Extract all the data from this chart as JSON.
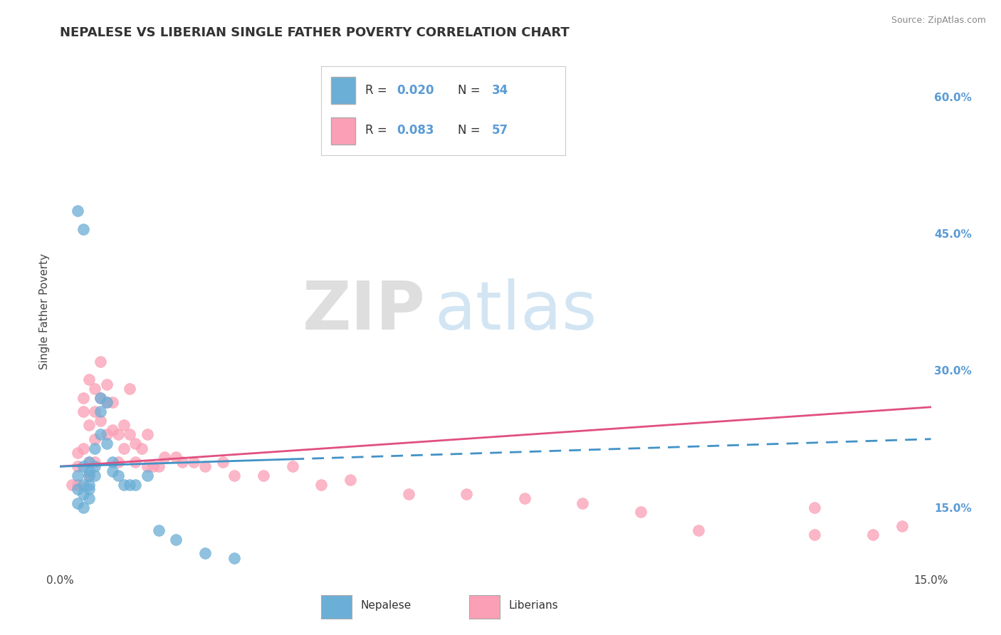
{
  "title": "NEPALESE VS LIBERIAN SINGLE FATHER POVERTY CORRELATION CHART",
  "source": "Source: ZipAtlas.com",
  "ylabel": "Single Father Poverty",
  "xmin": 0.0,
  "xmax": 0.15,
  "ymin": 0.08,
  "ymax": 0.65,
  "yticks_right": [
    0.15,
    0.3,
    0.45,
    0.6
  ],
  "ytick_labels_right": [
    "15.0%",
    "30.0%",
    "45.0%",
    "60.0%"
  ],
  "nepalese_R": 0.02,
  "nepalese_N": 34,
  "liberian_R": 0.083,
  "liberian_N": 57,
  "nepalese_color": "#6baed6",
  "liberian_color": "#fa9fb5",
  "liberian_line_color": "#e05080",
  "nepalese_line_color": "#4292c6",
  "background_color": "#ffffff",
  "grid_color": "#cccccc",
  "watermark_zip": "ZIP",
  "watermark_atlas": "atlas",
  "title_fontsize": 13,
  "nepalese_x": [
    0.003,
    0.003,
    0.003,
    0.004,
    0.004,
    0.004,
    0.004,
    0.005,
    0.005,
    0.005,
    0.005,
    0.005,
    0.005,
    0.006,
    0.006,
    0.006,
    0.007,
    0.007,
    0.007,
    0.008,
    0.008,
    0.009,
    0.009,
    0.01,
    0.011,
    0.012,
    0.013,
    0.015,
    0.017,
    0.02,
    0.025,
    0.03,
    0.003,
    0.004
  ],
  "nepalese_y": [
    0.155,
    0.17,
    0.185,
    0.175,
    0.195,
    0.165,
    0.15,
    0.2,
    0.185,
    0.17,
    0.16,
    0.175,
    0.19,
    0.185,
    0.195,
    0.215,
    0.27,
    0.255,
    0.23,
    0.265,
    0.22,
    0.2,
    0.19,
    0.185,
    0.175,
    0.175,
    0.175,
    0.185,
    0.125,
    0.115,
    0.1,
    0.095,
    0.475,
    0.455
  ],
  "liberian_x": [
    0.002,
    0.003,
    0.003,
    0.003,
    0.004,
    0.004,
    0.004,
    0.005,
    0.005,
    0.005,
    0.005,
    0.006,
    0.006,
    0.006,
    0.006,
    0.007,
    0.007,
    0.007,
    0.008,
    0.008,
    0.008,
    0.009,
    0.009,
    0.01,
    0.01,
    0.011,
    0.011,
    0.012,
    0.012,
    0.013,
    0.013,
    0.014,
    0.015,
    0.015,
    0.016,
    0.017,
    0.018,
    0.02,
    0.021,
    0.023,
    0.025,
    0.028,
    0.03,
    0.035,
    0.04,
    0.045,
    0.05,
    0.06,
    0.07,
    0.08,
    0.09,
    0.1,
    0.11,
    0.13,
    0.13,
    0.14,
    0.145
  ],
  "liberian_y": [
    0.175,
    0.21,
    0.175,
    0.195,
    0.27,
    0.255,
    0.215,
    0.29,
    0.24,
    0.2,
    0.185,
    0.28,
    0.255,
    0.225,
    0.2,
    0.31,
    0.27,
    0.245,
    0.285,
    0.265,
    0.23,
    0.265,
    0.235,
    0.23,
    0.2,
    0.24,
    0.215,
    0.28,
    0.23,
    0.22,
    0.2,
    0.215,
    0.23,
    0.195,
    0.195,
    0.195,
    0.205,
    0.205,
    0.2,
    0.2,
    0.195,
    0.2,
    0.185,
    0.185,
    0.195,
    0.175,
    0.18,
    0.165,
    0.165,
    0.16,
    0.155,
    0.145,
    0.125,
    0.12,
    0.15,
    0.12,
    0.13
  ],
  "nep_trend_x0": 0.0,
  "nep_trend_y0": 0.195,
  "nep_trend_x1": 0.15,
  "nep_trend_y1": 0.225,
  "lib_trend_x0": 0.0,
  "lib_trend_y0": 0.195,
  "lib_trend_x1": 0.15,
  "lib_trend_y1": 0.26
}
